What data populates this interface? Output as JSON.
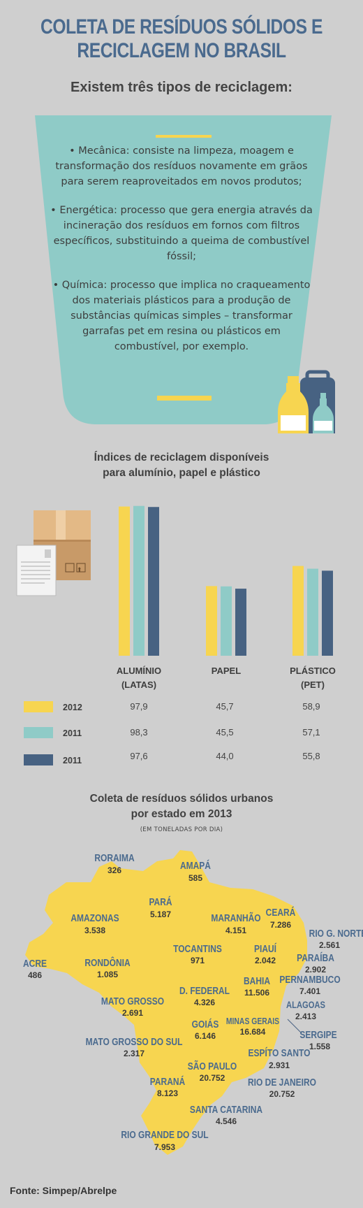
{
  "header": {
    "title_line1": "COLETA DE RESÍDUOS SÓLIDOS E",
    "title_line2": "RECICLAGEM NO BRASIL",
    "subtitle": "Existem três tipos de reciclagem:"
  },
  "recycling_types": [
    "• Mecânica: consiste na limpeza, moagem e transformação dos resíduos novamente em grãos para serem reaproveitados em novos produtos;",
    "• Energética: processo que gera energia através da incineração dos resíduos em fornos com filtros específicos, substituindo a queima de combustível fóssil;",
    "• Química: processo que implica no craqueamento dos materiais plásticos para a produção de substâncias químicas simples – transformar garrafas pet em resina ou plásticos em combustível, por exemplo."
  ],
  "icons": {
    "bottles": "recycling-bottles-icon",
    "boxes": "cardboard-box-and-paper-icon"
  },
  "colors": {
    "yellow": "#f7d550",
    "teal": "#8fcbc7",
    "navy": "#476282",
    "map": "#f7d550",
    "title_blue": "#4a6a8e"
  },
  "chart_data": [
    {
      "type": "bar",
      "title": "Índices de reciclagem disponíveis para alumínio, papel e plástico",
      "title_line1": "Índices de reciclagem disponíveis",
      "title_line2": "para alumínio, papel e plástico",
      "categories": [
        {
          "line1": "ALUMÍNIO",
          "line2": "(LATAS)"
        },
        {
          "line1": "PAPEL",
          "line2": ""
        },
        {
          "line1": "PLÁSTICO",
          "line2": "(PET)"
        }
      ],
      "series": [
        {
          "name": "2012",
          "color": "#f7d550",
          "values": [
            97.9,
            45.7,
            58.9
          ],
          "labels": [
            "97,9",
            "45,7",
            "58,9"
          ]
        },
        {
          "name": "2011",
          "color": "#8fcbc7",
          "values": [
            98.3,
            45.5,
            57.1
          ],
          "labels": [
            "98,3",
            "45,5",
            "57,1"
          ]
        },
        {
          "name": "2011",
          "color": "#476282",
          "values": [
            97.6,
            44.0,
            55.8
          ],
          "labels": [
            "97,6",
            "44,0",
            "55,8"
          ]
        }
      ],
      "ylim": [
        0,
        100
      ],
      "legend_position": "left"
    },
    {
      "type": "map",
      "title": "Coleta de resíduos sólidos urbanos por estado em 2013",
      "title_line1": "Coleta de resíduos sólidos urbanos",
      "title_line2": "por estado em 2013",
      "unit": "(EM TONELADAS POR DIA)",
      "states": [
        {
          "name": "RORAIMA",
          "value": "326"
        },
        {
          "name": "AMAPÁ",
          "value": "585"
        },
        {
          "name": "AMAZONAS",
          "value": "3.538"
        },
        {
          "name": "PARÁ",
          "value": "5.187"
        },
        {
          "name": "MARANHÃO",
          "value": "4.151"
        },
        {
          "name": "CEARÁ",
          "value": "7.286"
        },
        {
          "name": "RIO G. NORTE",
          "value": "2.561"
        },
        {
          "name": "PARAÍBA",
          "value": "2.902"
        },
        {
          "name": "ACRE",
          "value": "486"
        },
        {
          "name": "RONDÔNIA",
          "value": "1.085"
        },
        {
          "name": "TOCANTINS",
          "value": "971"
        },
        {
          "name": "PIAUÍ",
          "value": "2.042"
        },
        {
          "name": "PERNAMBUCO",
          "value": "7.401"
        },
        {
          "name": "BAHIA",
          "value": "11.506"
        },
        {
          "name": "D. FEDERAL",
          "value": "4.326"
        },
        {
          "name": "MATO GROSSO",
          "value": "2.691"
        },
        {
          "name": "ALAGOAS",
          "value": "2.413"
        },
        {
          "name": "SERGIPE",
          "value": "1.558"
        },
        {
          "name": "GOIÁS",
          "value": "6.146"
        },
        {
          "name": "MINAS GERAIS",
          "value": "16.684"
        },
        {
          "name": "MATO GROSSO DO SUL",
          "value": "2.317"
        },
        {
          "name": "ESPÍTO SANTO",
          "value": "2.931"
        },
        {
          "name": "SÃO PAULO",
          "value": "20.752"
        },
        {
          "name": "RIO DE JANEIRO",
          "value": "20.752"
        },
        {
          "name": "PARANÁ",
          "value": "8.123"
        },
        {
          "name": "SANTA CATARINA",
          "value": "4.546"
        },
        {
          "name": "RIO GRANDE DO SUL",
          "value": "7.953"
        }
      ]
    }
  ],
  "footer": {
    "source": "Fonte: Simpep/Abrelpe"
  }
}
